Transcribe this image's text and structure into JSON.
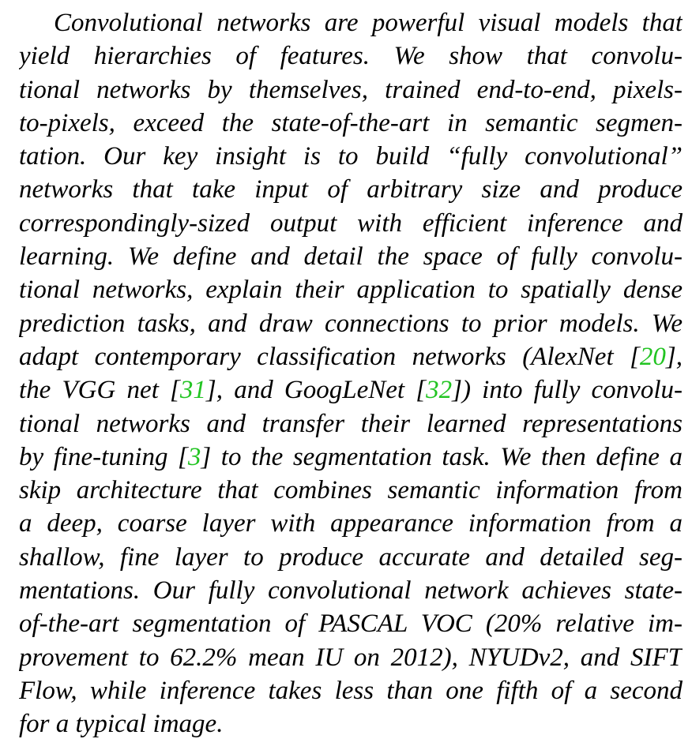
{
  "abstract": {
    "lines": [
      "Convolutional networks are powerful visual models that",
      "yield hierarchies of features.  We show that convolu-",
      "tional networks by themselves, trained end-to-end, pixels-",
      "to-pixels, exceed the state-of-the-art in semantic segmen-",
      "tation.  Our key insight is to build “fully convolutional”",
      "networks that take input of arbitrary size and produce",
      "correspondingly-sized output with efficient inference and",
      "learning.  We define and detail the space of fully convolu-",
      "tional networks, explain their application to spatially dense",
      "prediction tasks, and draw connections to prior models. We",
      {
        "pre": "adapt contemporary classification networks (AlexNet [",
        "cite": "20",
        "post": "],"
      },
      {
        "pre": "the VGG net [",
        "cite": "31",
        "mid": "], and GoogLeNet [",
        "cite2": "32",
        "post": "]) into fully convolu-"
      },
      "tional networks and transfer their learned representations",
      {
        "pre": "by fine-tuning [",
        "cite": "3",
        "post": "] to the segmentation task. We then define a"
      },
      "skip architecture that combines semantic information from",
      "a deep, coarse layer with appearance information from a",
      "shallow, fine layer to produce accurate and detailed seg-",
      "mentations. Our fully convolutional network achieves state-",
      "of-the-art segmentation of PASCAL VOC (20% relative im-",
      "provement to 62.2% mean IU on 2012), NYUDv2, and SIFT",
      "Flow, while inference takes less than one fifth of a second",
      "for a typical image."
    ]
  },
  "colors": {
    "text": "#000000",
    "citation": "#22c422"
  }
}
